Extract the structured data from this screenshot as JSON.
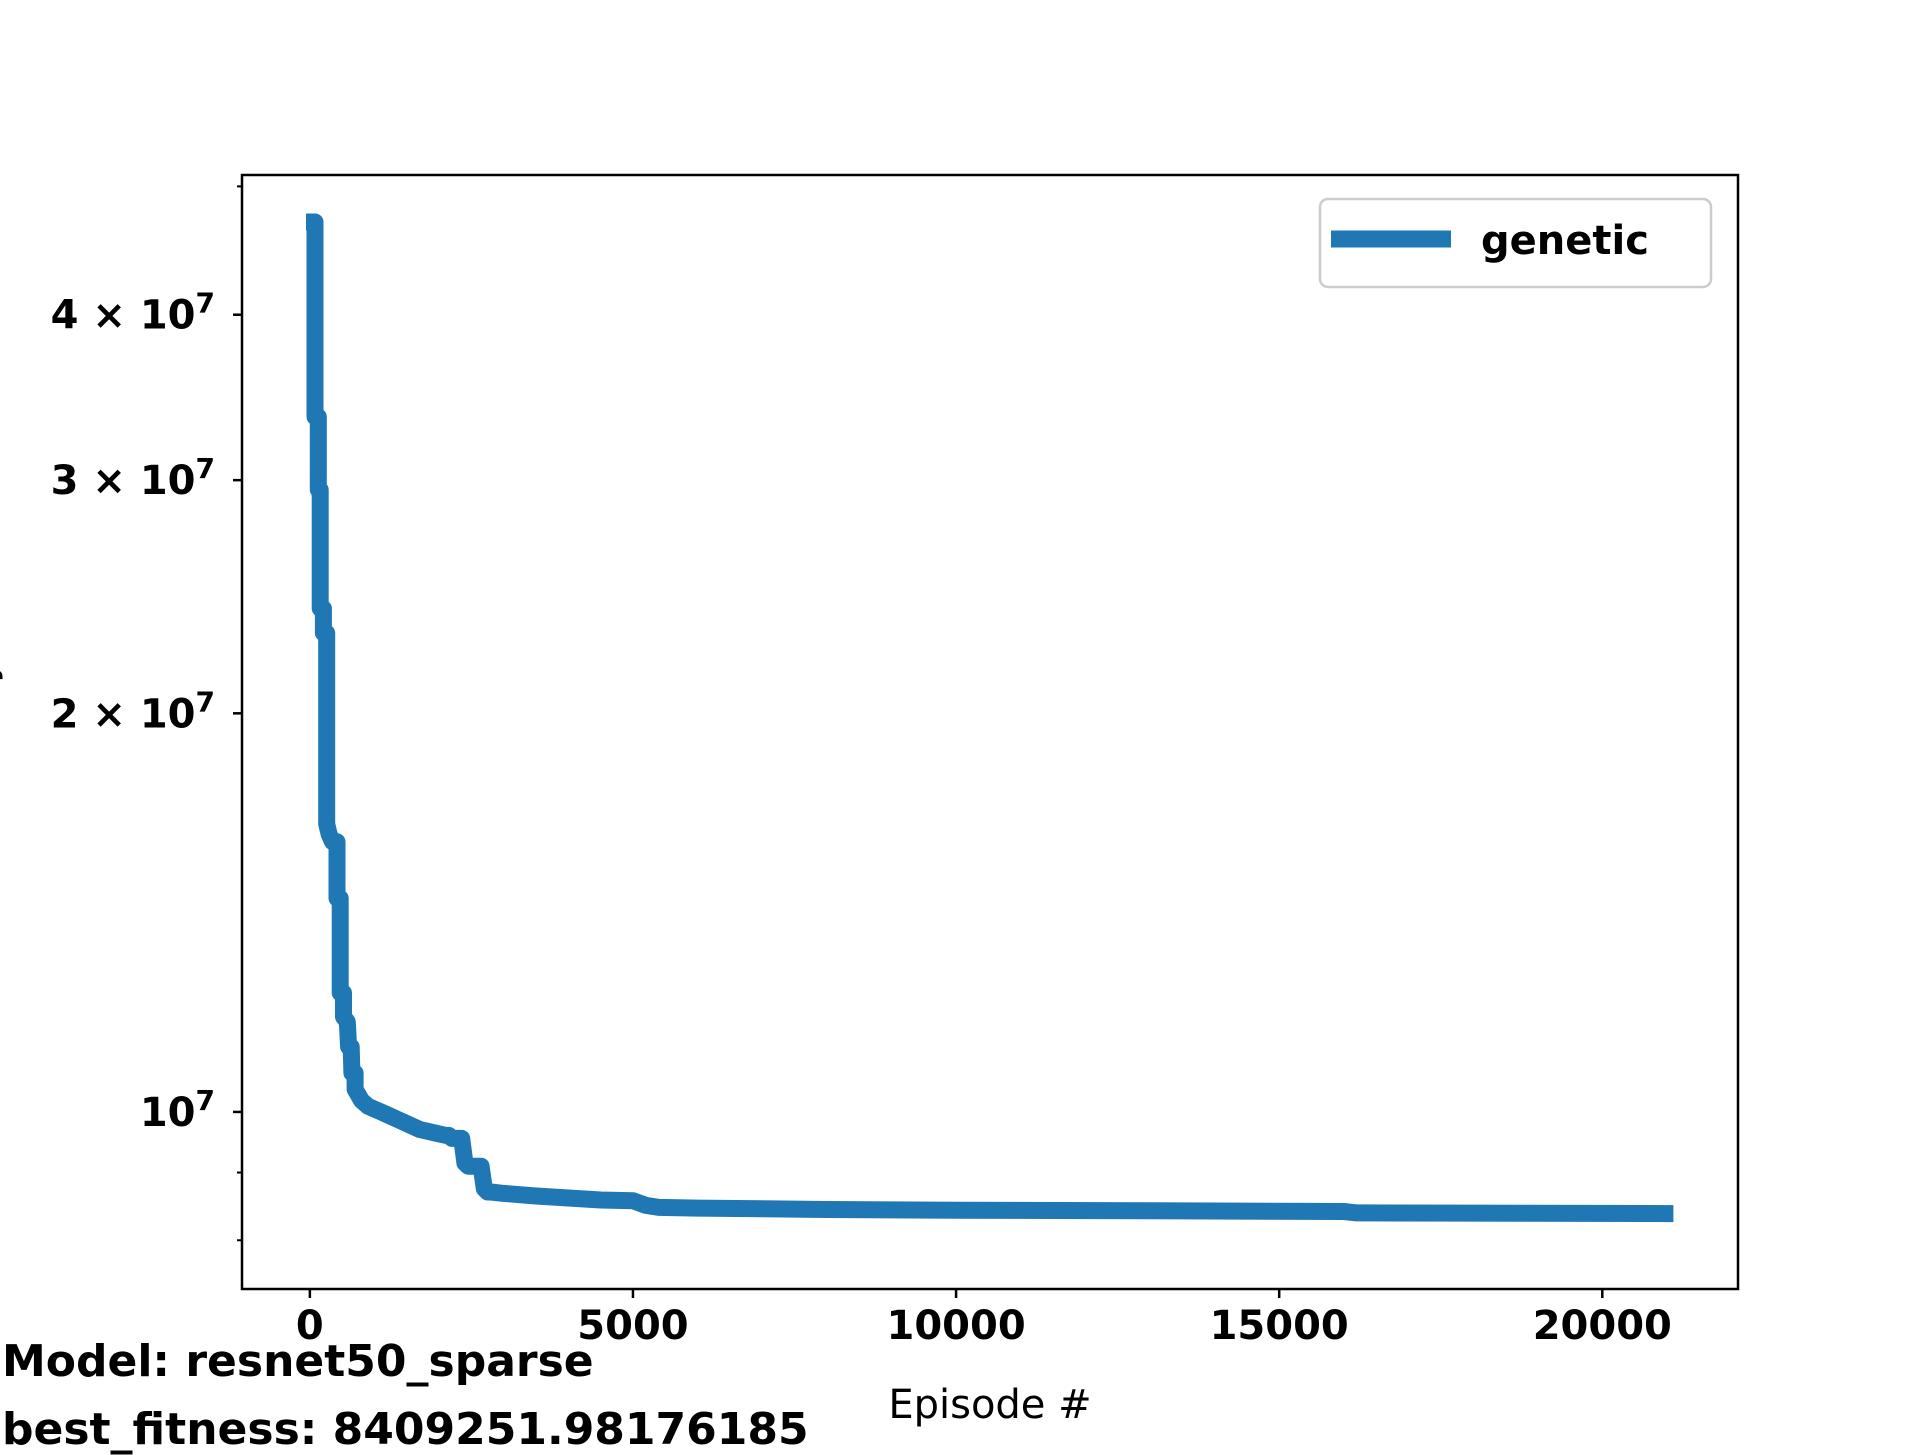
{
  "chart_data": {
    "type": "line",
    "title": "",
    "xlabel": "Episode #",
    "ylabel": "latency",
    "y_scale": "log",
    "xlim": [
      -1050,
      22100
    ],
    "ylim": [
      7350000,
      51000000
    ],
    "grid": false,
    "legend_placement": "top-right",
    "x_ticks": [
      {
        "value": 0,
        "label": "0"
      },
      {
        "value": 5000,
        "label": "5000"
      },
      {
        "value": 10000,
        "label": "10000"
      },
      {
        "value": 15000,
        "label": "15000"
      },
      {
        "value": 20000,
        "label": "20000"
      }
    ],
    "y_ticks": [
      {
        "value": 10000000,
        "base": "10",
        "exp": "7",
        "mant": ""
      },
      {
        "value": 20000000,
        "base": "10",
        "exp": "7",
        "mant": "2 × "
      },
      {
        "value": 30000000,
        "base": "10",
        "exp": "7",
        "mant": "3 × "
      },
      {
        "value": 40000000,
        "base": "10",
        "exp": "7",
        "mant": "4 × "
      }
    ],
    "y_minor_ticks": [
      8000000,
      9000000,
      50000000
    ],
    "series": [
      {
        "name": "genetic",
        "color": "#1f77b4",
        "x": [
          -60,
          0,
          80,
          80,
          100,
          130,
          130,
          160,
          160,
          210,
          210,
          260,
          260,
          300,
          300,
          350,
          420,
          420,
          470,
          470,
          520,
          520,
          580,
          600,
          640,
          650,
          700,
          700,
          750,
          800,
          850,
          900,
          1000,
          1100,
          1200,
          1300,
          1500,
          1700,
          1900,
          2100,
          2150,
          2200,
          2350,
          2400,
          2450,
          2500,
          2600,
          2650,
          2700,
          2750,
          2800,
          3000,
          3500,
          4000,
          4500,
          5000,
          5200,
          5400,
          6000,
          8000,
          10000,
          13000,
          16000,
          16200,
          21100
        ],
        "y": [
          47000000,
          47000000,
          47000000,
          33500000,
          33500000,
          33500000,
          29500000,
          29500000,
          24000000,
          24000000,
          23000000,
          23000000,
          16500000,
          16200000,
          16200000,
          16000000,
          16000000,
          14500000,
          14500000,
          12300000,
          12300000,
          11800000,
          11700000,
          11200000,
          11200000,
          10700000,
          10700000,
          10400000,
          10300000,
          10200000,
          10150000,
          10100000,
          10050000,
          10000000,
          9950000,
          9900000,
          9800000,
          9700000,
          9650000,
          9600000,
          9600000,
          9550000,
          9550000,
          9150000,
          9100000,
          9100000,
          9100000,
          9100000,
          8750000,
          8700000,
          8700000,
          8680000,
          8640000,
          8610000,
          8580000,
          8570000,
          8500000,
          8470000,
          8460000,
          8440000,
          8430000,
          8420000,
          8410000,
          8390000,
          8380000
        ]
      }
    ]
  },
  "annotations": {
    "model": "Model: resnet50_sparse",
    "best_fitness": "best_fitness: 8409251.98176185"
  }
}
